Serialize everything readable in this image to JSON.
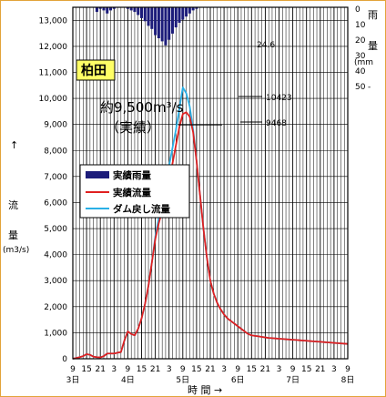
{
  "chart_data": {
    "type": "line",
    "station": "柏田",
    "ylim": [
      0,
      13500
    ],
    "yticks": [
      "0",
      "1,000",
      "2,000",
      "3,000",
      "4,000",
      "5,000",
      "6,000",
      "7,000",
      "8,000",
      "9,000",
      "10,000",
      "11,000",
      "12,000",
      "13,000"
    ],
    "ylabel_arrow": "↑",
    "ylabel_chars": [
      "流",
      "量"
    ],
    "ylabel_unit": "(m3/s)",
    "rain_ticks": [
      "0",
      "10",
      "20",
      "30",
      "40",
      "50"
    ],
    "rain_ylim": [
      0,
      50
    ],
    "rain_label_chars": [
      "雨",
      "量"
    ],
    "rain_unit": "(mm",
    "rain_unit_tail": "-",
    "hour_labels": [
      "9",
      "15",
      "21",
      "3",
      "9",
      "15",
      "21",
      "3",
      "9",
      "15",
      "21",
      "3",
      "9",
      "15",
      "21",
      "3",
      "9",
      "15",
      "21",
      "3",
      "9"
    ],
    "day_labels": [
      "3日",
      "4日",
      "5日",
      "6日",
      "7日",
      "8日"
    ],
    "xlabel": "時 間 →",
    "legend": [
      "実績雨量",
      "実績流量",
      "ダム戻し流量"
    ],
    "colors": {
      "rain": "#1c1c7a",
      "observed": "#e02020",
      "restored": "#2ab0e6",
      "frame": "#e2a33a"
    },
    "annotation_main": "約9,500m³/s",
    "annotation_sub": "（実績）",
    "labels": {
      "peak_restored": "10423",
      "peak_observed": "9468",
      "rain_max": "24.6"
    },
    "series": [
      {
        "name": "ダム戻し流量",
        "x": [
          0,
          1,
          2,
          3,
          4,
          5,
          6,
          7,
          8,
          9,
          10,
          11,
          12,
          13,
          14,
          15,
          16,
          17,
          18,
          19,
          20,
          21,
          22,
          23,
          24,
          25,
          26,
          27,
          28,
          29,
          30,
          31,
          32,
          33,
          34,
          35,
          36,
          37,
          38,
          39,
          40,
          41,
          42,
          43,
          44,
          45,
          46,
          47,
          48,
          49,
          50,
          51,
          52,
          53,
          54,
          55,
          56,
          57,
          58,
          59,
          60,
          61,
          62,
          63,
          64,
          65,
          66,
          67,
          68,
          69,
          70,
          71,
          72,
          73,
          74,
          75,
          76,
          77,
          78,
          79,
          80
        ],
        "values": [
          0,
          30,
          60,
          100,
          180,
          150,
          80,
          60,
          50,
          100,
          200,
          200,
          200,
          230,
          260,
          700,
          1050,
          950,
          900,
          1150,
          1550,
          2100,
          2800,
          3700,
          4700,
          5400,
          6000,
          6700,
          7400,
          8100,
          8800,
          9600,
          10423,
          10200,
          9700,
          8800,
          7600,
          6300,
          5000,
          3900,
          3000,
          2500,
          2150,
          1900,
          1700,
          1550,
          1450,
          1350,
          1250,
          1150,
          1050,
          950,
          900,
          880,
          860,
          840,
          820,
          800,
          790,
          780,
          770,
          760,
          750,
          740,
          730,
          720,
          710,
          700,
          690,
          680,
          670,
          660,
          650,
          640,
          630,
          620,
          610,
          600,
          590,
          580,
          570
        ]
      },
      {
        "name": "実績流量",
        "x": [
          0,
          1,
          2,
          3,
          4,
          5,
          6,
          7,
          8,
          9,
          10,
          11,
          12,
          13,
          14,
          15,
          16,
          17,
          18,
          19,
          20,
          21,
          22,
          23,
          24,
          25,
          26,
          27,
          28,
          29,
          30,
          31,
          32,
          33,
          34,
          35,
          36,
          37,
          38,
          39,
          40,
          41,
          42,
          43,
          44,
          45,
          46,
          47,
          48,
          49,
          50,
          51,
          52,
          53,
          54,
          55,
          56,
          57,
          58,
          59,
          60,
          61,
          62,
          63,
          64,
          65,
          66,
          67,
          68,
          69,
          70,
          71,
          72,
          73,
          74,
          75,
          76,
          77,
          78,
          79,
          80
        ],
        "values": [
          0,
          30,
          60,
          100,
          180,
          150,
          80,
          60,
          50,
          100,
          200,
          200,
          200,
          230,
          260,
          700,
          1050,
          950,
          900,
          1150,
          1550,
          2100,
          2800,
          3700,
          4600,
          5200,
          5700,
          6200,
          6800,
          7500,
          8200,
          8900,
          9400,
          9468,
          9300,
          8700,
          7600,
          6300,
          5000,
          3900,
          3000,
          2500,
          2150,
          1900,
          1700,
          1550,
          1450,
          1350,
          1250,
          1150,
          1050,
          950,
          900,
          880,
          860,
          840,
          820,
          800,
          790,
          780,
          770,
          760,
          750,
          740,
          730,
          720,
          710,
          700,
          690,
          680,
          670,
          660,
          650,
          640,
          630,
          620,
          610,
          600,
          590,
          580,
          570
        ]
      }
    ],
    "rain": {
      "x": [
        7,
        8,
        9,
        10,
        11,
        12,
        13,
        14,
        15,
        16,
        17,
        18,
        19,
        20,
        21,
        22,
        23,
        24,
        25,
        26,
        27,
        28,
        29,
        30,
        31,
        32,
        33,
        34,
        35,
        36
      ],
      "values": [
        3,
        1,
        2,
        4,
        2,
        1,
        0,
        0,
        0,
        1,
        2,
        3,
        5,
        7,
        9,
        12,
        14,
        18,
        20,
        22,
        24.6,
        21,
        17,
        13,
        10,
        8,
        6,
        4,
        2,
        1
      ]
    }
  }
}
